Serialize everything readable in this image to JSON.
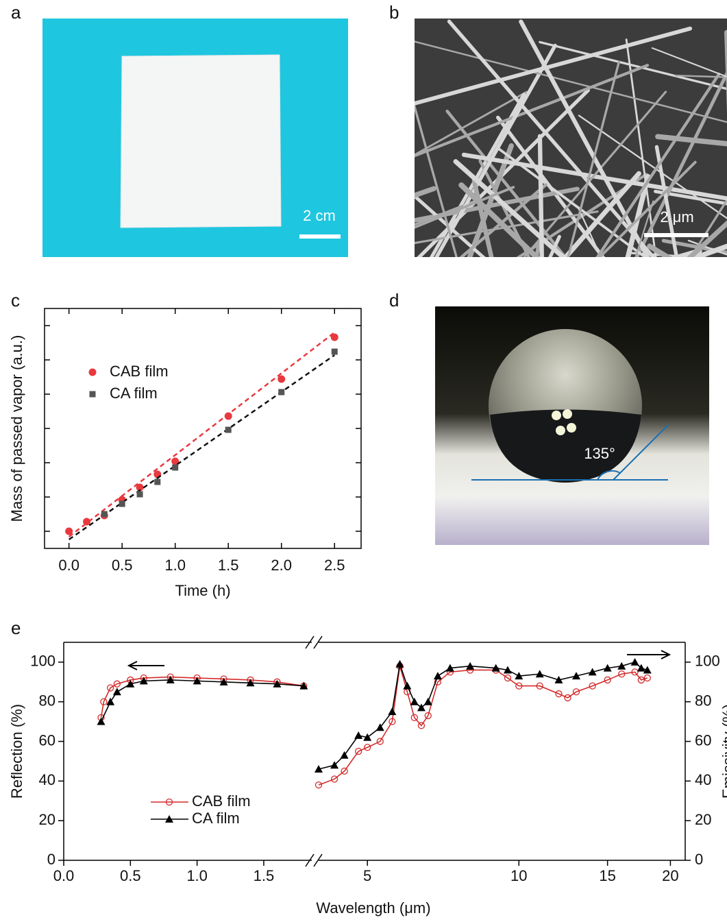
{
  "panels": {
    "a": {
      "label": "a",
      "scale_bar": "2 cm"
    },
    "b": {
      "label": "b",
      "scale_bar": "2 μm"
    },
    "d": {
      "label": "d",
      "angle": "135°"
    }
  },
  "chart_data": [
    {
      "type": "scatter",
      "panel_label": "c",
      "x_label": "Time (h)",
      "y_label": "Mass of passed vapor (a.u.)",
      "xlim": [
        -0.23,
        2.75
      ],
      "ylim": [
        -0.5,
        6.5
      ],
      "xticks": [
        {
          "value": 0,
          "label": "0.0"
        },
        {
          "value": 0.5,
          "label": "0.5"
        },
        {
          "value": 1,
          "label": "1.0"
        },
        {
          "value": 1.5,
          "label": "1.5"
        },
        {
          "value": 2,
          "label": "2.0"
        },
        {
          "value": 2.5,
          "label": "2.5"
        }
      ],
      "yticks": [
        0,
        1,
        2,
        3,
        4,
        5,
        6
      ],
      "show_ytick_labels": false,
      "legend": "upper left",
      "series": [
        {
          "name": "CAB film",
          "color": "#e8393f",
          "marker": "circle",
          "x": [
            0,
            0.167,
            0.333,
            0.5,
            0.667,
            0.833,
            1.0,
            1.5,
            2.0,
            2.5
          ],
          "values": [
            0,
            0.28,
            0.46,
            0.92,
            1.28,
            1.66,
            2.04,
            3.36,
            4.44,
            5.66
          ],
          "fit": {
            "x": [
              0,
              2.5
            ],
            "values": [
              -0.16,
              5.8
            ]
          }
        },
        {
          "name": "CA film",
          "color": "#555555",
          "marker": "square",
          "x": [
            0.333,
            0.5,
            0.667,
            0.833,
            1.0,
            1.5,
            2.0,
            2.5
          ],
          "values": [
            0.5,
            0.8,
            1.08,
            1.44,
            1.86,
            2.96,
            4.06,
            5.24
          ],
          "fit": {
            "x": [
              0,
              2.5
            ],
            "values": [
              -0.24,
              5.14
            ]
          }
        }
      ]
    },
    {
      "type": "broken-line",
      "panel_label": "e",
      "x_label": "Wavelength (μm)",
      "y_label": "Reflection (%)",
      "y2_label": "Emissivity (%)",
      "ylim": [
        0,
        110
      ],
      "yticks": [
        0,
        20,
        40,
        60,
        80,
        100
      ],
      "y2lim": [
        0,
        110
      ],
      "y2ticks": [
        0,
        20,
        40,
        60,
        80,
        100
      ],
      "legend": "lower left",
      "x_segments": [
        {
          "xlim": [
            0,
            1.86
          ],
          "scale": "linear",
          "xticks": [
            {
              "value": 0,
              "label": "0.0"
            },
            {
              "value": 0.5,
              "label": "0.5"
            },
            {
              "value": 1,
              "label": "1.0"
            },
            {
              "value": 1.5,
              "label": "1.5"
            }
          ]
        },
        {
          "xlim": [
            4,
            21.4
          ],
          "scale": "log",
          "xticks": [
            5,
            10,
            15,
            20
          ]
        }
      ],
      "series": [
        {
          "name": "CAB film",
          "color": "#d42a2a",
          "marker": "circle-open",
          "parts": [
            {
              "x": [
                0.28,
                0.3,
                0.35,
                0.4,
                0.5,
                0.6,
                0.8,
                1.0,
                1.2,
                1.4,
                1.6,
                1.8
              ],
              "values": [
                72,
                80,
                87,
                89,
                91,
                92,
                92.5,
                92,
                91.5,
                91,
                90,
                88
              ]
            },
            {
              "axis": "y2",
              "x": [
                4.0,
                4.3,
                4.5,
                4.8,
                5.0,
                5.3,
                5.6,
                5.8,
                6.0,
                6.2,
                6.4,
                6.6,
                6.9,
                7.3,
                8,
                9,
                9.5,
                10,
                11,
                12,
                12.5,
                13,
                14,
                15,
                16,
                17,
                17.5,
                18
              ],
              "values": [
                38,
                41,
                45,
                55,
                57,
                60,
                70,
                98,
                85,
                72,
                68,
                73,
                90,
                95,
                96,
                96,
                92,
                88,
                88,
                84,
                82,
                85,
                88,
                91,
                94,
                95,
                91,
                92
              ]
            }
          ]
        },
        {
          "name": "CA film",
          "color": "#000000",
          "marker": "triangle",
          "parts": [
            {
              "x": [
                0.28,
                0.35,
                0.4,
                0.5,
                0.6,
                0.8,
                1.0,
                1.2,
                1.4,
                1.6,
                1.8
              ],
              "values": [
                70,
                80,
                85,
                89,
                90.5,
                91,
                90.5,
                90,
                89.5,
                89,
                88
              ]
            },
            {
              "axis": "y2",
              "x": [
                4.0,
                4.3,
                4.5,
                4.8,
                5.0,
                5.3,
                5.6,
                5.8,
                6.0,
                6.2,
                6.4,
                6.6,
                6.9,
                7.3,
                8,
                9,
                9.5,
                10,
                11,
                12,
                13,
                14,
                15,
                16,
                17,
                17.5,
                18
              ],
              "values": [
                46,
                48,
                53,
                63,
                62,
                67,
                75,
                99,
                88,
                80,
                77,
                80,
                93,
                97,
                98,
                97,
                96,
                93,
                94,
                91,
                93,
                95,
                97,
                98,
                100,
                97,
                96
              ]
            }
          ]
        }
      ]
    }
  ]
}
